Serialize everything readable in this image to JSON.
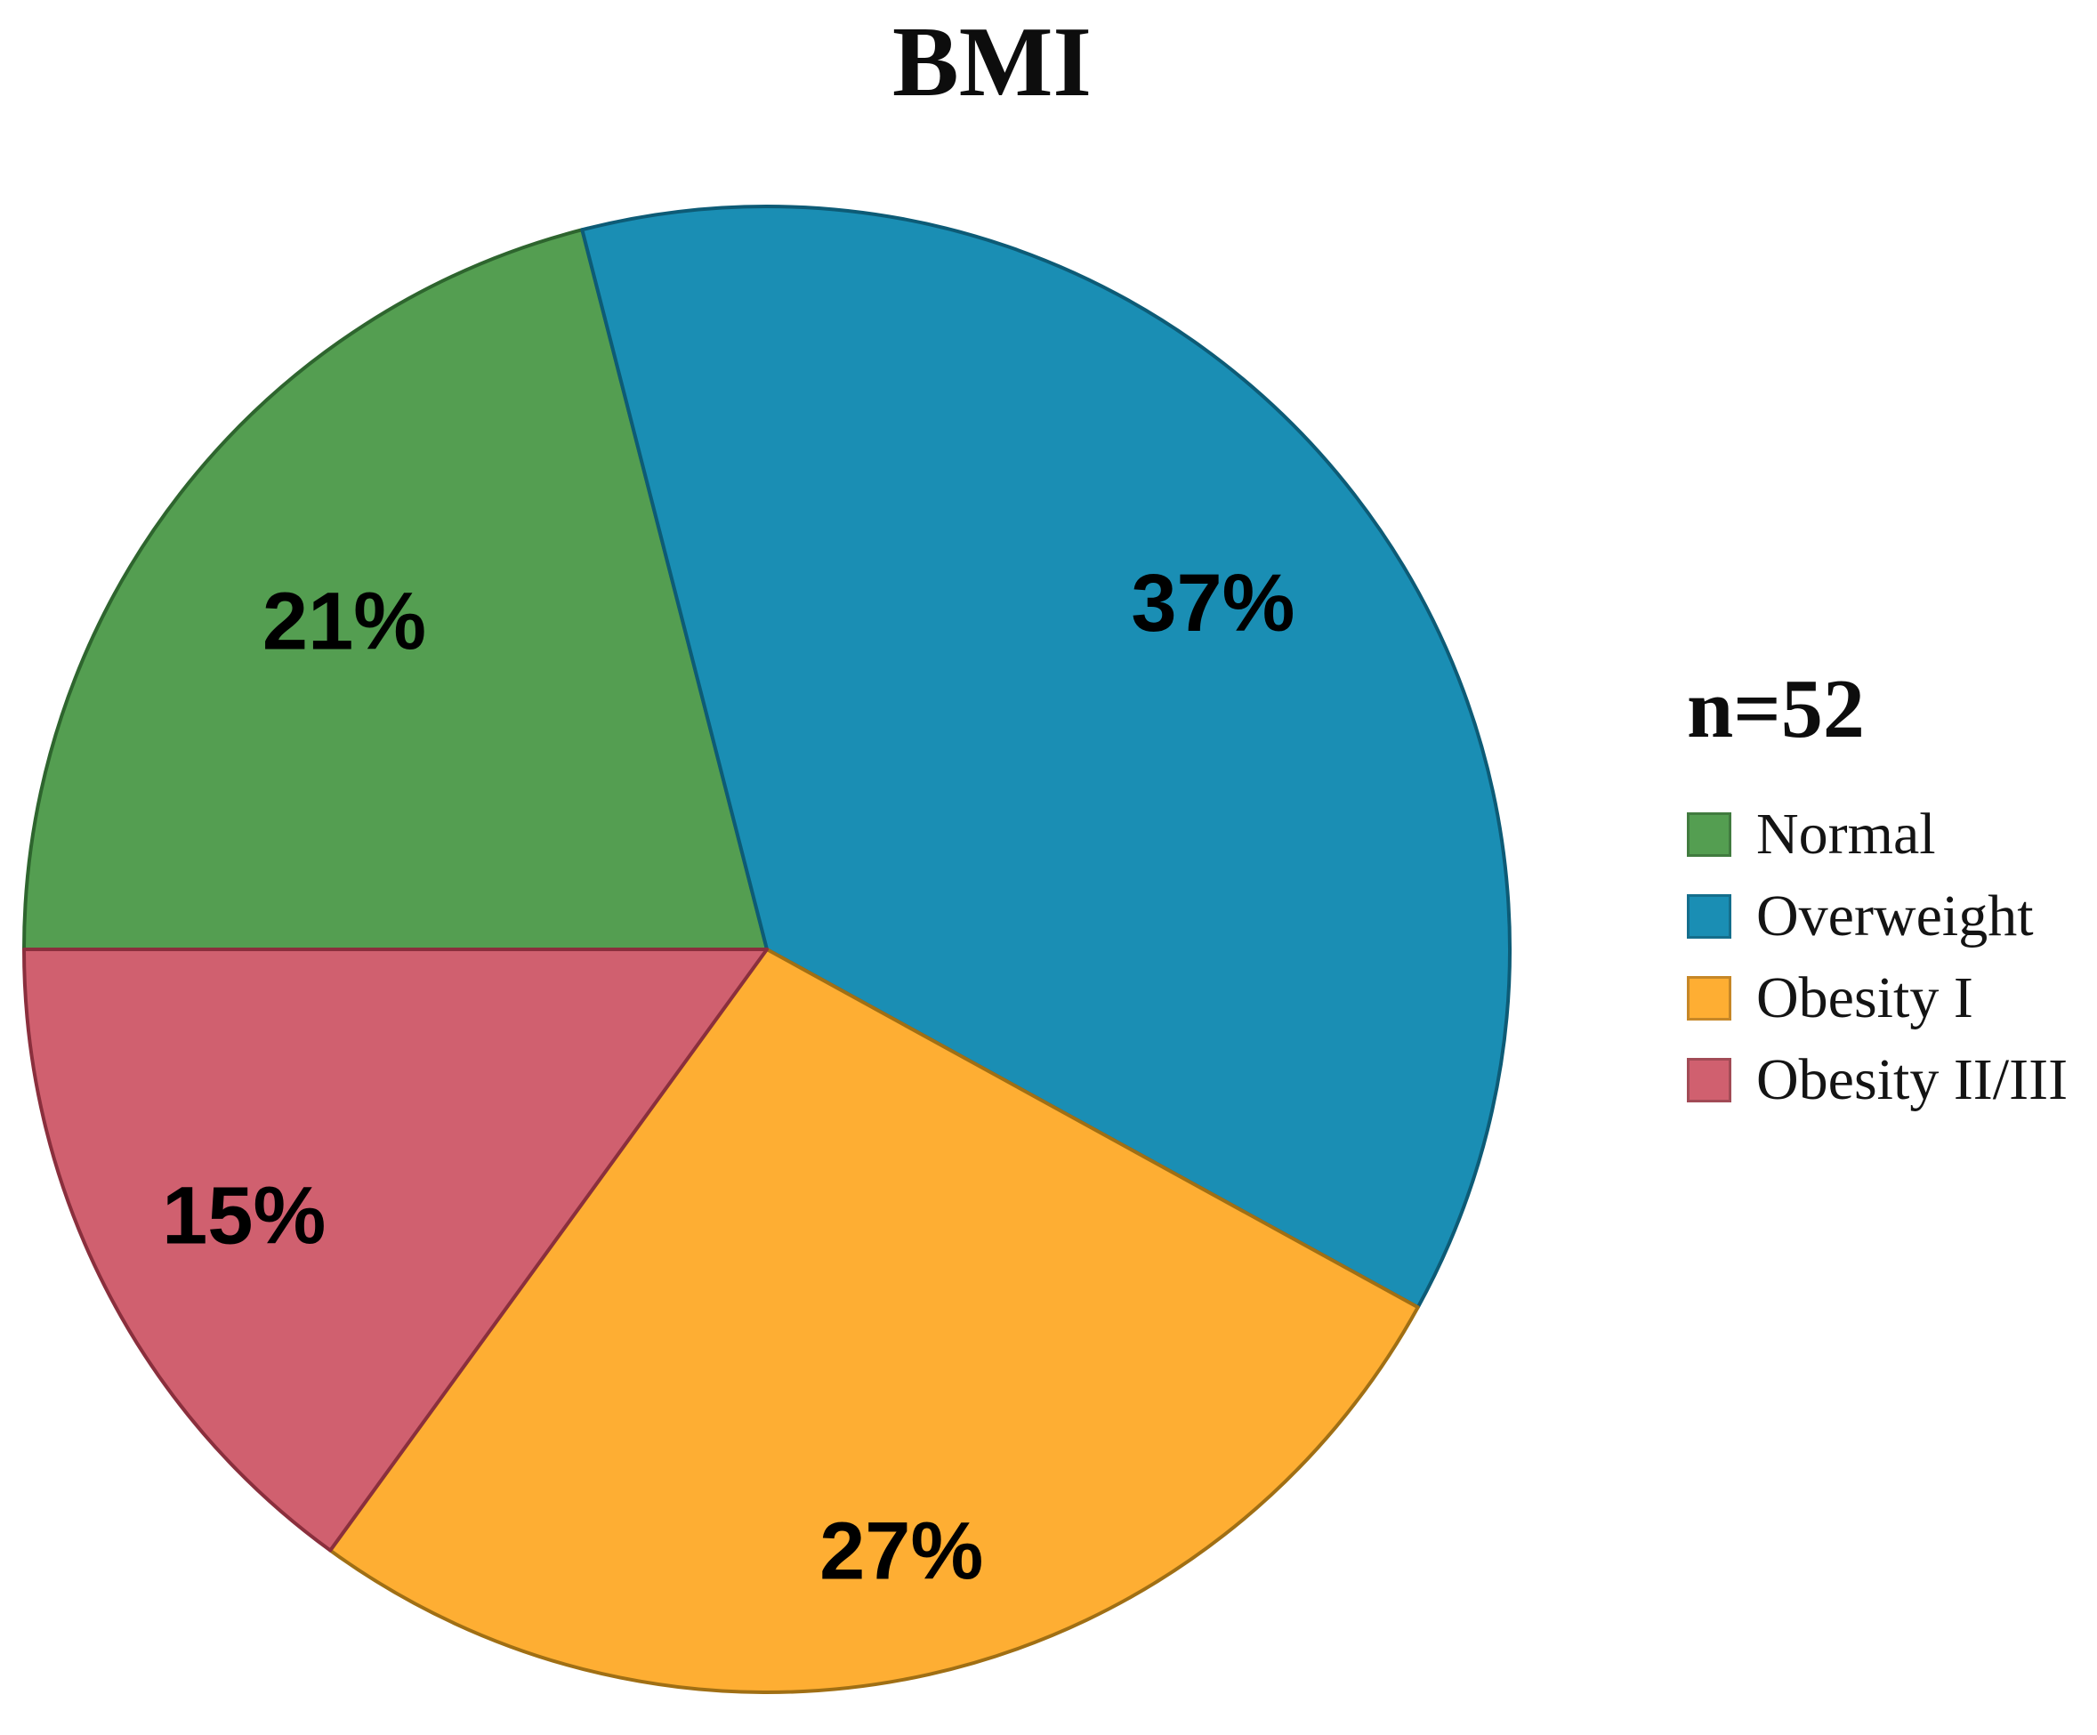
{
  "figure": {
    "title": "BMI",
    "legend_header": "n=52"
  },
  "chart_data": {
    "type": "pie",
    "title": "BMI",
    "sample_size_label": "n=52",
    "legend_position": "right",
    "grid": false,
    "start_angle_deg": 180,
    "direction": "clockwise",
    "label_color": "#000000",
    "background": "#ffffff",
    "slices": [
      {
        "label": "Normal",
        "value": 21,
        "pct_label": "21%",
        "color": "#549e51",
        "border": "#2e652e",
        "label_r": 0.72
      },
      {
        "label": "Overweight",
        "value": 37,
        "pct_label": "37%",
        "color": "#1a8eb4",
        "border": "#0d5b76",
        "label_r": 0.76
      },
      {
        "label": "Obesity I",
        "value": 27,
        "pct_label": "27%",
        "color": "#feae33",
        "border": "#a06f14",
        "label_r": 0.83
      },
      {
        "label": "Obesity II/III",
        "value": 15,
        "pct_label": "15%",
        "color": "#d0606f",
        "border": "#8a2f3d",
        "label_r": 0.79
      }
    ]
  }
}
